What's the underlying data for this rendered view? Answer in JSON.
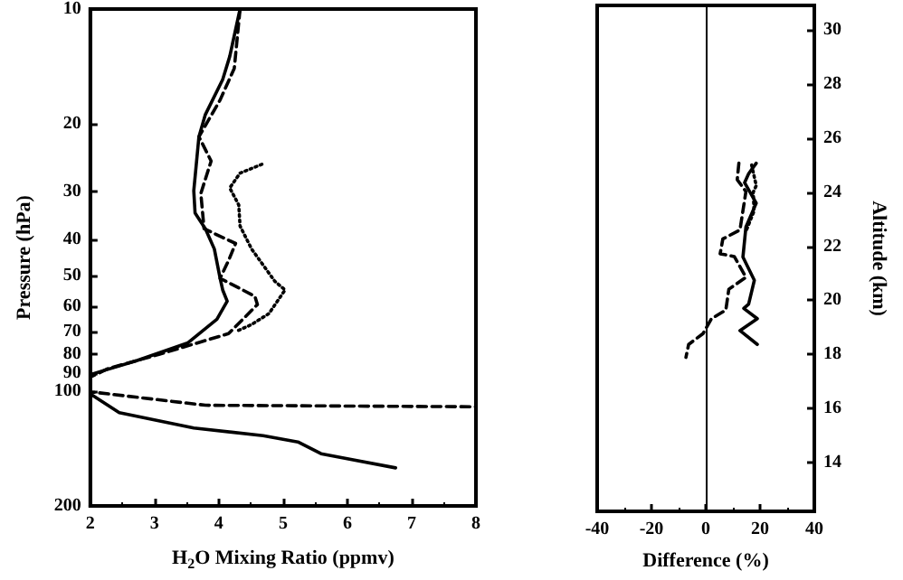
{
  "chart_data": [
    {
      "type": "line",
      "xlabel": "H$_{2}$O Mixing Ratio (ppmv)",
      "ylabel": "Pressure (hPa)",
      "log": "y",
      "xlim": [
        2,
        8
      ],
      "xticks": [
        2,
        3,
        4,
        5,
        6,
        7,
        8
      ],
      "ylim": [
        200,
        10
      ],
      "yticks": [
        10,
        20,
        30,
        40,
        50,
        60,
        70,
        80,
        90,
        100,
        200
      ],
      "series": [
        {
          "color": "#000000",
          "line_style": "solid",
          "x": [
            4.33,
            4.17,
            4.06,
            3.79,
            3.69,
            3.61,
            3.63,
            3.79,
            3.93,
            4.02,
            4.06,
            4.13,
            3.97,
            3.52,
            2.72,
            2.0,
            2.0,
            2.45,
            3.61,
            4.69,
            5.23,
            5.59,
            6.75
          ],
          "values": [
            10,
            13.3,
            15.3,
            18.9,
            21.6,
            29.9,
            34.2,
            37.6,
            42.5,
            50.7,
            54.4,
            58.2,
            64.9,
            74.8,
            83.3,
            90.6,
            101.8,
            114,
            125,
            131,
            136,
            146,
            159
          ]
        },
        {
          "color": "#000000",
          "line_style": "dashed",
          "x": [
            4.33,
            4.24,
            4.02,
            3.69,
            3.88,
            3.72,
            3.77,
            4.26,
            4.15,
            4.02,
            4.56,
            4.6,
            4.15,
            3.08,
            2.27,
            2.0,
            2.0,
            3.79,
            8.0
          ],
          "values": [
            10,
            14.3,
            17.3,
            21.6,
            25.0,
            30.4,
            37.6,
            41.1,
            45.6,
            50.7,
            56.5,
            59.4,
            70.8,
            80.1,
            87.5,
            92,
            100.5,
            109,
            110
          ]
        },
        {
          "color": "#000000",
          "line_style": "dotted",
          "x": [
            4.67,
            4.33,
            4.17,
            4.31,
            4.33,
            4.51,
            4.87,
            5.03,
            4.78,
            4.51,
            4.3
          ],
          "values": [
            25.5,
            26.9,
            29.4,
            32.6,
            37.0,
            42.5,
            51.6,
            54.4,
            62.7,
            67,
            69.5
          ]
        }
      ]
    },
    {
      "type": "line",
      "xlabel": "Difference (%)",
      "y2label": "Altitude (km)",
      "xlim": [
        -40,
        40
      ],
      "xticks": [
        -40,
        -20,
        0,
        20,
        40
      ],
      "y2lim": [
        12.2,
        30.9
      ],
      "y2ticks": [
        14,
        16,
        18,
        20,
        22,
        24,
        26,
        28,
        30
      ],
      "ref_lines": [
        {
          "axis": "x",
          "value": 0,
          "color": "#000000"
        }
      ],
      "series": [
        {
          "color": "#000000",
          "line_style": "solid",
          "axis": "y2",
          "x": [
            18.6,
            15.8,
            14.3,
            18.6,
            14.8,
            13.7,
            17.9,
            15.8,
            14.0,
            19.0,
            12.6,
            19.0
          ],
          "values": [
            25.07,
            24.68,
            24.35,
            23.59,
            22.71,
            21.6,
            20.74,
            19.86,
            19.7,
            19.32,
            18.88,
            18.37
          ]
        },
        {
          "color": "#000000",
          "line_style": "dashed",
          "axis": "y2",
          "x": [
            12.2,
            11.6,
            14.8,
            12.6,
            6.3,
            5.3,
            10.5,
            14.8,
            8.5,
            7.4,
            2.1,
            -1.0,
            -6.3,
            -7.3
          ],
          "values": [
            25.07,
            24.46,
            24.02,
            22.6,
            22.27,
            21.72,
            21.62,
            20.85,
            20.41,
            19.64,
            19.32,
            18.77,
            18.37,
            17.89
          ]
        },
        {
          "color": "#000000",
          "line_style": "dotted",
          "axis": "y2",
          "x": [
            16.9,
            18.6,
            17.5,
            17.8,
            15.0
          ],
          "values": [
            25.0,
            24.24,
            24.0,
            23.3,
            22.6
          ]
        }
      ]
    }
  ]
}
